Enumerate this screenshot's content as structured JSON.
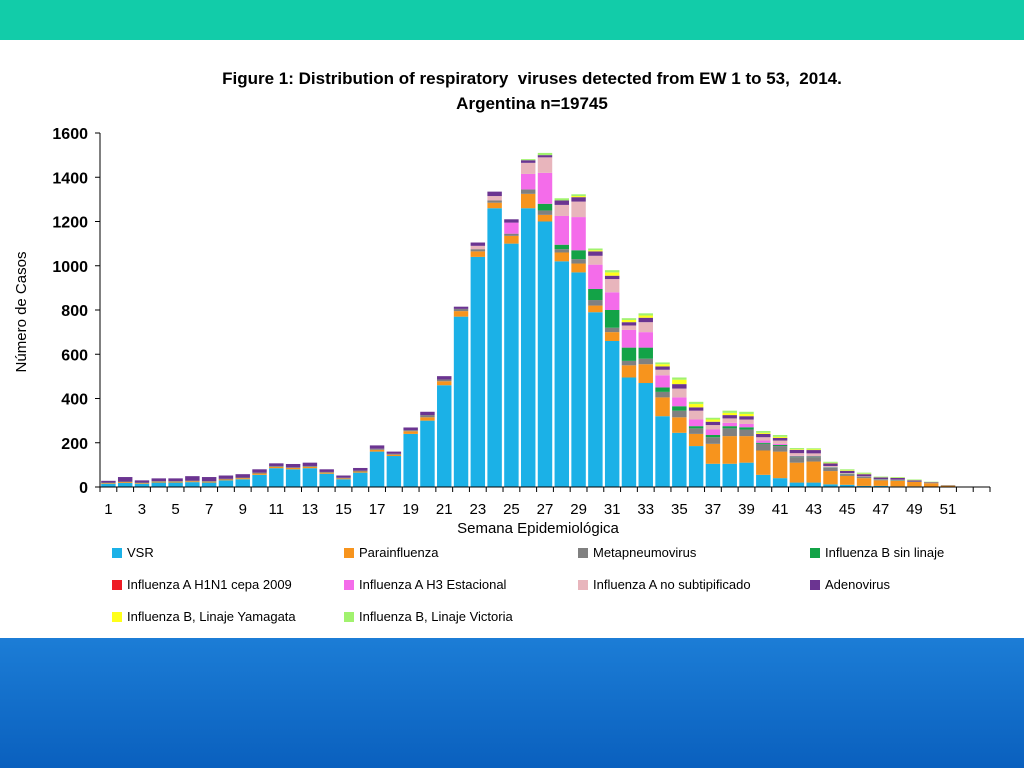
{
  "colors": {
    "top_band": "#12CCA9",
    "bottom_band": "#1C7DD6"
  },
  "chart_data": {
    "type": "bar",
    "stacked": true,
    "title": "Figure 1: Distribution of respiratory  viruses detected from EW 1 to 53,  2014.",
    "subtitle": "Argentina n=19745",
    "xlabel": "Semana Epidemiológica",
    "ylabel": "Número de Casos",
    "ylim": [
      0,
      1600
    ],
    "yticks": [
      "0",
      "200",
      "400",
      "600",
      "800",
      "1000",
      "1200",
      "1400",
      "1600"
    ],
    "xtick_labels": [
      "1",
      "3",
      "5",
      "7",
      "9",
      "11",
      "13",
      "15",
      "17",
      "19",
      "21",
      "23",
      "25",
      "27",
      "29",
      "31",
      "33",
      "35",
      "37",
      "39",
      "41",
      "43",
      "45",
      "47",
      "49",
      "51"
    ],
    "grid": false,
    "legend_position": "bottom",
    "x": [
      1,
      2,
      3,
      4,
      5,
      6,
      7,
      8,
      9,
      10,
      11,
      12,
      13,
      14,
      15,
      16,
      17,
      18,
      19,
      20,
      21,
      22,
      23,
      24,
      25,
      26,
      27,
      28,
      29,
      30,
      31,
      32,
      33,
      34,
      35,
      36,
      37,
      38,
      39,
      40,
      41,
      42,
      43,
      44,
      45,
      46,
      47,
      48,
      49,
      50,
      51,
      52,
      53
    ],
    "series": [
      {
        "name": "VSR",
        "color": "#1BB1E7",
        "values": [
          15,
          18,
          15,
          20,
          20,
          22,
          20,
          30,
          35,
          55,
          85,
          80,
          85,
          60,
          35,
          65,
          160,
          140,
          240,
          300,
          460,
          770,
          1040,
          1260,
          1100,
          1260,
          1200,
          1020,
          970,
          790,
          660,
          495,
          470,
          320,
          245,
          185,
          105,
          105,
          110,
          55,
          40,
          20,
          20,
          12,
          10,
          5,
          5,
          3,
          3,
          2,
          1,
          0,
          0
        ]
      },
      {
        "name": "Parainfluenza",
        "color": "#F7941D",
        "values": [
          3,
          4,
          3,
          4,
          4,
          4,
          4,
          4,
          5,
          6,
          6,
          6,
          6,
          5,
          4,
          5,
          8,
          6,
          12,
          15,
          18,
          25,
          25,
          25,
          35,
          65,
          30,
          40,
          40,
          30,
          40,
          55,
          85,
          85,
          70,
          55,
          90,
          125,
          120,
          110,
          120,
          90,
          95,
          60,
          40,
          35,
          25,
          25,
          20,
          15,
          5,
          0,
          0
        ]
      },
      {
        "name": "Metapneumovirus",
        "color": "#808080",
        "values": [
          2,
          3,
          2,
          3,
          3,
          3,
          3,
          3,
          3,
          4,
          4,
          3,
          4,
          3,
          3,
          4,
          5,
          4,
          5,
          10,
          8,
          10,
          10,
          10,
          10,
          20,
          20,
          15,
          20,
          25,
          20,
          20,
          25,
          25,
          30,
          25,
          30,
          35,
          30,
          30,
          25,
          25,
          20,
          15,
          8,
          5,
          3,
          3,
          2,
          1,
          0,
          0,
          0
        ]
      },
      {
        "name": "Influenza B sin linaje",
        "color": "#13A347",
        "values": [
          0,
          0,
          0,
          0,
          0,
          0,
          0,
          0,
          0,
          0,
          0,
          0,
          0,
          0,
          0,
          0,
          0,
          0,
          0,
          0,
          0,
          0,
          0,
          0,
          0,
          0,
          30,
          20,
          40,
          50,
          80,
          60,
          50,
          20,
          20,
          10,
          10,
          10,
          10,
          5,
          5,
          3,
          3,
          2,
          2,
          1,
          1,
          1,
          0,
          0,
          0,
          0,
          0
        ]
      },
      {
        "name": "Influenza A H1N1 cepa 2009",
        "color": "#EE1C25",
        "values": [
          0,
          0,
          0,
          0,
          0,
          0,
          0,
          0,
          0,
          0,
          0,
          0,
          0,
          0,
          0,
          0,
          0,
          0,
          0,
          0,
          0,
          0,
          0,
          0,
          0,
          0,
          0,
          0,
          0,
          0,
          0,
          0,
          0,
          0,
          0,
          0,
          0,
          0,
          0,
          0,
          0,
          0,
          0,
          0,
          0,
          0,
          0,
          0,
          0,
          0,
          0,
          0,
          0
        ]
      },
      {
        "name": "Influenza A H3 Estacional",
        "color": "#F46CEA",
        "values": [
          0,
          0,
          0,
          0,
          0,
          0,
          0,
          0,
          0,
          0,
          0,
          0,
          0,
          0,
          0,
          0,
          0,
          0,
          0,
          0,
          0,
          0,
          0,
          0,
          50,
          70,
          140,
          130,
          150,
          110,
          80,
          80,
          70,
          55,
          40,
          30,
          25,
          15,
          15,
          10,
          5,
          3,
          2,
          1,
          0,
          0,
          0,
          0,
          0,
          0,
          0,
          0,
          0
        ]
      },
      {
        "name": "Influenza A no subtipificado",
        "color": "#E8B5BC",
        "values": [
          0,
          0,
          0,
          0,
          0,
          0,
          0,
          0,
          0,
          0,
          0,
          0,
          0,
          0,
          0,
          0,
          0,
          0,
          0,
          0,
          0,
          0,
          15,
          20,
          0,
          50,
          70,
          50,
          70,
          40,
          60,
          20,
          45,
          25,
          40,
          40,
          20,
          20,
          20,
          15,
          15,
          12,
          12,
          5,
          3,
          2,
          1,
          1,
          0,
          0,
          0,
          0,
          0
        ]
      },
      {
        "name": "Adenovirus",
        "color": "#6B3491",
        "values": [
          8,
          20,
          10,
          12,
          12,
          20,
          18,
          15,
          15,
          15,
          12,
          15,
          15,
          12,
          10,
          12,
          15,
          10,
          12,
          15,
          15,
          10,
          15,
          20,
          15,
          12,
          10,
          20,
          20,
          20,
          15,
          15,
          20,
          15,
          20,
          15,
          15,
          15,
          15,
          15,
          12,
          15,
          15,
          12,
          10,
          10,
          8,
          8,
          5,
          3,
          2,
          1,
          0
        ]
      },
      {
        "name": "Influenza B, Linaje Yamagata",
        "color": "#FFFF1A",
        "values": [
          0,
          0,
          0,
          0,
          0,
          0,
          0,
          0,
          0,
          0,
          0,
          0,
          0,
          0,
          0,
          0,
          0,
          0,
          0,
          0,
          0,
          0,
          0,
          0,
          0,
          0,
          0,
          0,
          5,
          5,
          15,
          10,
          10,
          10,
          20,
          15,
          10,
          10,
          10,
          5,
          5,
          3,
          3,
          2,
          2,
          2,
          1,
          1,
          1,
          1,
          0,
          0,
          0
        ]
      },
      {
        "name": "Influenza B, Linaje Victoria",
        "color": "#A1F26E",
        "values": [
          0,
          0,
          0,
          0,
          0,
          0,
          0,
          0,
          0,
          0,
          0,
          0,
          0,
          0,
          0,
          0,
          0,
          0,
          0,
          0,
          0,
          0,
          0,
          0,
          0,
          5,
          10,
          10,
          8,
          8,
          10,
          8,
          10,
          8,
          10,
          10,
          8,
          10,
          10,
          8,
          8,
          5,
          5,
          5,
          5,
          5,
          3,
          3,
          3,
          2,
          1,
          0,
          0
        ]
      }
    ]
  }
}
